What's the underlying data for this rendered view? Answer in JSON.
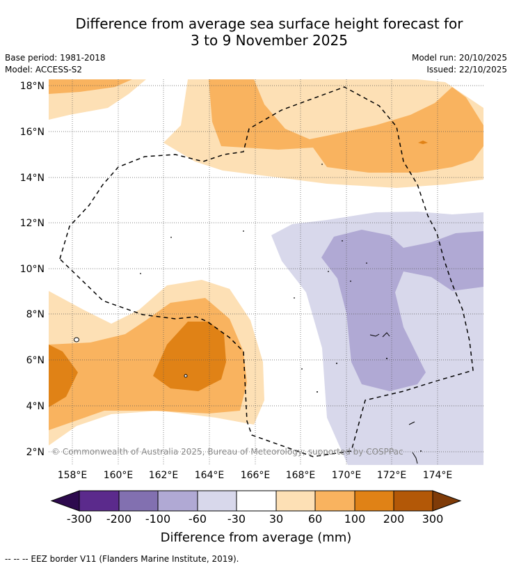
{
  "title_line1": "Difference from average sea surface height forecast for",
  "title_line2": "3 to 9 November 2025",
  "base_period": "Base period: 1981-2018",
  "model": "Model: ACCESS-S2",
  "model_run": "Model run: 20/10/2025",
  "issued": "Issued: 22/10/2025",
  "lat_labels": [
    "18°N",
    "16°N",
    "14°N",
    "12°N",
    "10°N",
    "8°N",
    "6°N",
    "4°N",
    "2°N"
  ],
  "lon_labels": [
    "158°E",
    "160°E",
    "162°E",
    "164°E",
    "166°E",
    "168°E",
    "170°E",
    "172°E",
    "174°E"
  ],
  "copyright": "© Commonwealth of Australia 2025, Bureau of Meteorology; supported by COSPPac",
  "colorbar": {
    "title": "Difference from average (mm)",
    "ticks": [
      "-300",
      "-200",
      "-100",
      "-60",
      "-30",
      "30",
      "60",
      "100",
      "200",
      "300"
    ],
    "colors": {
      "below_min": "#2d0a4e",
      "neg_300_200": "#5b2a8c",
      "neg_200_100": "#8270b0",
      "neg_100_60": "#b0a9d4",
      "neg_60_30": "#d8d8eb",
      "neutral": "#ffffff",
      "pos_30_60": "#fde0b5",
      "pos_60_100": "#f9b35f",
      "pos_100_200": "#e08216",
      "pos_200_300": "#b35807",
      "above_max": "#7f3b08"
    }
  },
  "footer": "-- -- -- EEZ border V11 (Flanders Marine Institute, 2019)."
}
